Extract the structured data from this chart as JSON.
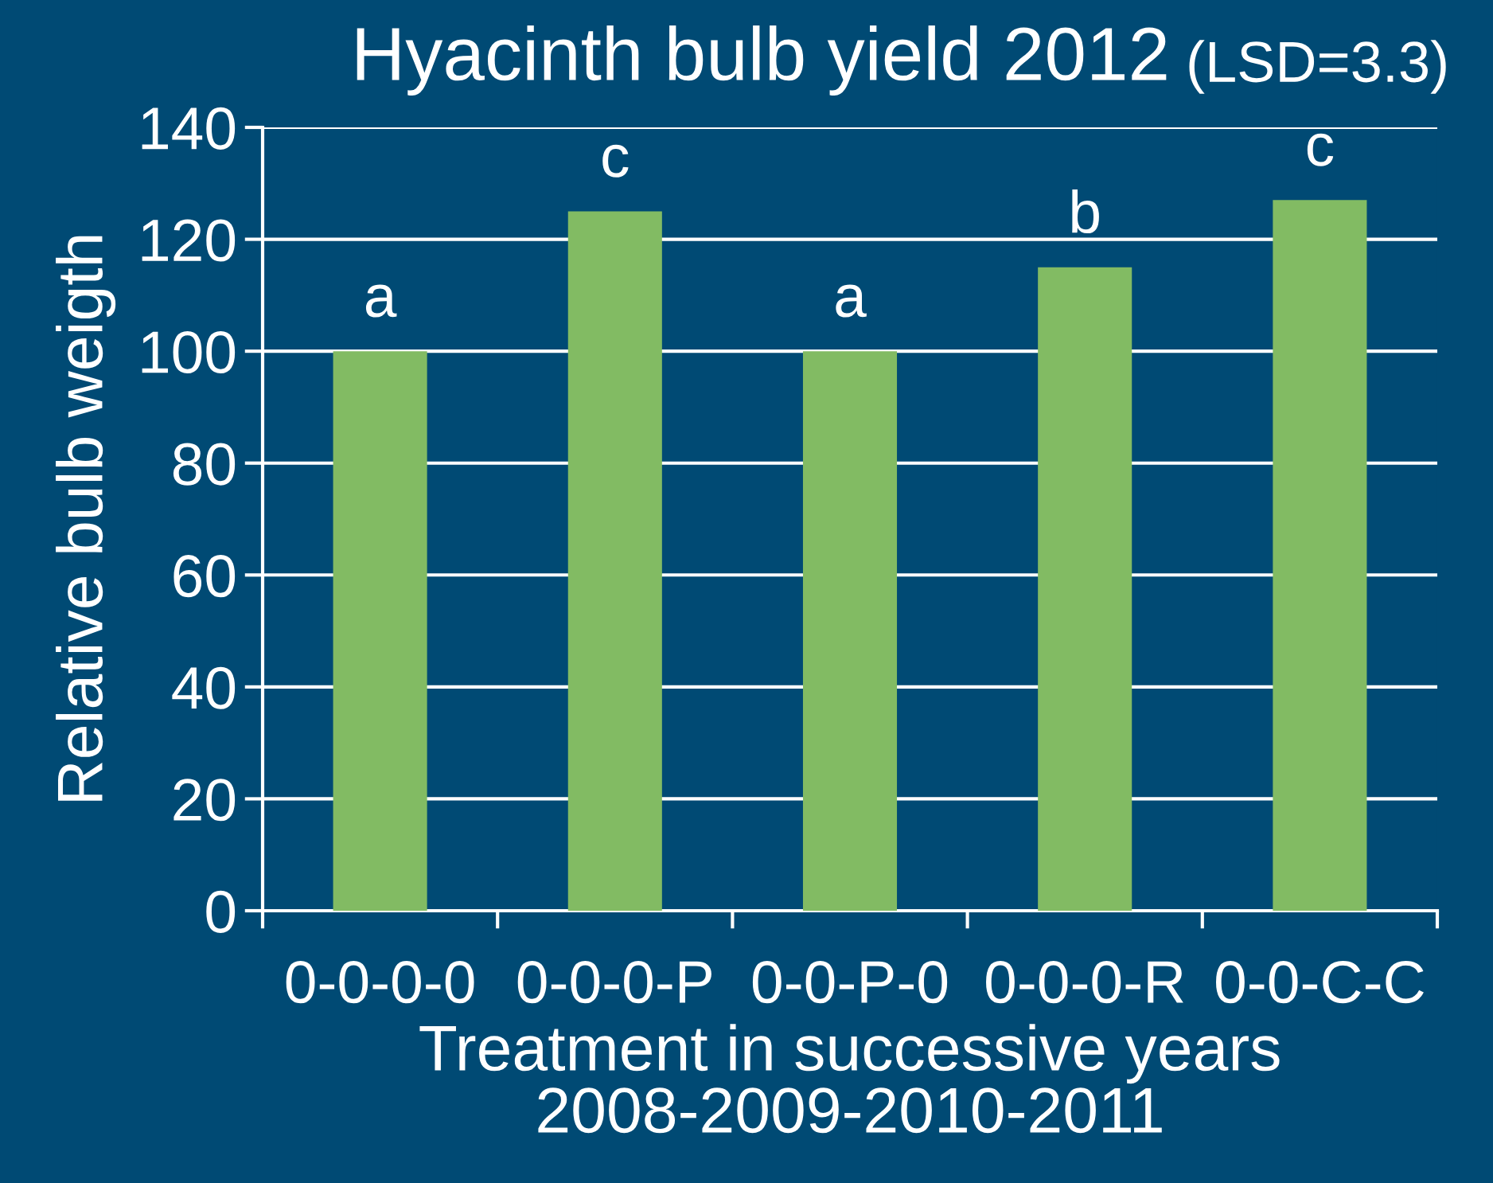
{
  "chart_data": {
    "type": "bar",
    "title": "Hyacinth bulb yield 2012",
    "subtitle": "(LSD=3.3)",
    "xlabel": "Treatment in successive years\n2008-2009-2010-2011",
    "ylabel": "Relative bulb weigth",
    "categories": [
      "0-0-0-0",
      "0-0-0-P",
      "0-0-P-0",
      "0-0-0-R",
      "0-0-C-C"
    ],
    "values": [
      100,
      125,
      100,
      115,
      127
    ],
    "color": "#82bb63",
    "ylim": [
      0,
      140
    ],
    "yticks": [
      0,
      20,
      40,
      60,
      80,
      100,
      120,
      140
    ],
    "grid": "y",
    "annotations": [
      {
        "text": "a",
        "x": "0-0-0-0",
        "y": 100
      },
      {
        "text": "c",
        "x": "0-0-0-P",
        "y": 125
      },
      {
        "text": "a",
        "x": "0-0-P-0",
        "y": 100
      },
      {
        "text": "b",
        "x": "0-0-0-R",
        "y": 115
      },
      {
        "text": "c",
        "x": "0-0-C-C",
        "y": 127
      }
    ]
  }
}
